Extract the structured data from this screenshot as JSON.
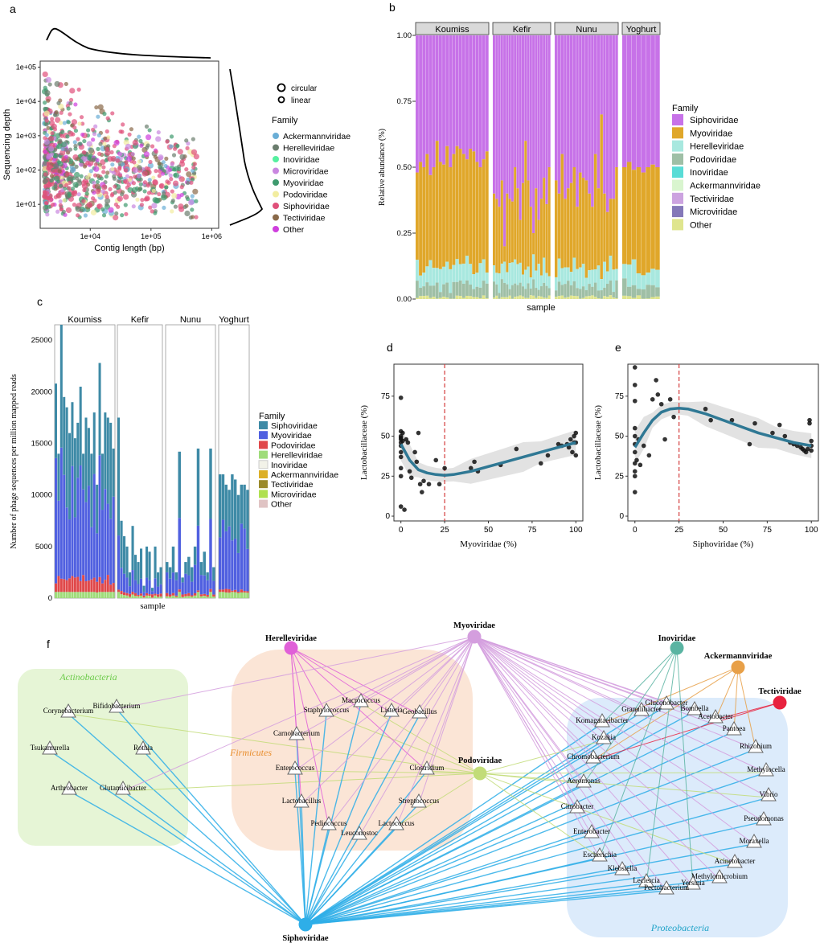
{
  "colors": {
    "Siphoviridae": "#c772e8",
    "Myoviridae": "#e0a72a",
    "Herelleviridae": "#a8e8df",
    "Podoviridae": "#9fbfa6",
    "Inoviridae": "#58dcd6",
    "Ackermannviridae": "#d9f5cf",
    "Tectiviridae": "#cca3e0",
    "Microviridae": "#8478b8",
    "Other": "#dfe58e"
  },
  "chart_data": [
    {
      "panel": "a",
      "type": "scatter",
      "xlabel": "Contig length (bp)",
      "ylabel": "Sequencing depth",
      "x_scale": "log10",
      "y_scale": "log10",
      "xlim": [
        1500,
        1300000
      ],
      "ylim": [
        2,
        150000
      ],
      "x_ticks": [
        "1e+04",
        "1e+05",
        "1e+06"
      ],
      "y_ticks": [
        "1e+01",
        "1e+02",
        "1e+03",
        "1e+04",
        "1e+05"
      ],
      "shape_legend": [
        "circular",
        "linear"
      ],
      "legend_title": "Family",
      "legend": [
        {
          "name": "Ackermannviridae",
          "color": "#6aaed6"
        },
        {
          "name": "Herelleviridae",
          "color": "#6b7d6e"
        },
        {
          "name": "Inoviridae",
          "color": "#56f0a0"
        },
        {
          "name": "Microviridae",
          "color": "#c987e0"
        },
        {
          "name": "Myoviridae",
          "color": "#3e9a6e"
        },
        {
          "name": "Podoviridae",
          "color": "#f2eda0"
        },
        {
          "name": "Siphoviridae",
          "color": "#e0507a"
        },
        {
          "name": "Tectiviridae",
          "color": "#8a6a4a"
        },
        {
          "name": "Other",
          "color": "#cf3fdd"
        }
      ]
    },
    {
      "panel": "b",
      "type": "bar",
      "stacked": true,
      "xlabel": "sample",
      "ylabel": "Relative abundance (%)",
      "ylim": [
        0,
        1
      ],
      "y_ticks": [
        "0.00",
        "0.25",
        "0.50",
        "0.75",
        "1.00"
      ],
      "facets": [
        "Koumiss",
        "Kefir",
        "Nunu",
        "Yoghurt"
      ],
      "legend_title": "Family",
      "legend": [
        "Siphoviridae",
        "Myoviridae",
        "Herelleviridae",
        "Podoviridae",
        "Inoviridae",
        "Ackermannviridae",
        "Tectiviridae",
        "Microviridae",
        "Other"
      ],
      "myoviridae_top": {
        "Koumiss": [
          0.48,
          0.52,
          0.5,
          0.55,
          0.47,
          0.5,
          0.6,
          0.52,
          0.51,
          0.58,
          0.5,
          0.55,
          0.58,
          0.57,
          0.55,
          0.53,
          0.57,
          0.56,
          0.52,
          0.5,
          0.53,
          0.56
        ],
        "Kefir": [
          0.4,
          0.38,
          0.35,
          0.45,
          0.2,
          0.4,
          0.38,
          0.37,
          0.5,
          0.42,
          0.3,
          0.44,
          0.6,
          0.45,
          0.35,
          0.25,
          0.42,
          0.3,
          0.38,
          0.46,
          0.36,
          0.5
        ],
        "Nunu": [
          0.45,
          0.4,
          0.55,
          0.38,
          0.42,
          0.44,
          0.5,
          0.35,
          0.48,
          0.46,
          0.45,
          0.4,
          0.35,
          0.55,
          0.42,
          0.7,
          0.4,
          0.33,
          0.38,
          0.38,
          0.5
        ],
        "Yoghurt": [
          0.5,
          0.52,
          0.49,
          0.5,
          0.48,
          0.5,
          0.51,
          0.5
        ]
      }
    },
    {
      "panel": "c",
      "type": "bar",
      "stacked": true,
      "xlabel": "sample",
      "ylabel": "Number of phage sequences per million mapped reads",
      "ylim": [
        0,
        26500
      ],
      "y_ticks": [
        "0",
        "5000",
        "10000",
        "15000",
        "20000",
        "25000"
      ],
      "facets": [
        "Koumiss",
        "Kefir",
        "Nunu",
        "Yoghurt"
      ],
      "legend_title": "Family",
      "legend": [
        {
          "name": "Siphoviridae",
          "color": "#3e8aa6"
        },
        {
          "name": "Myoviridae",
          "color": "#5060e0"
        },
        {
          "name": "Podoviridae",
          "color": "#e0484a"
        },
        {
          "name": "Herelleviridae",
          "color": "#9fdc7a"
        },
        {
          "name": "Inoviridae",
          "color": "#f2f2e8"
        },
        {
          "name": "Ackermannviridae",
          "color": "#dcb028"
        },
        {
          "name": "Tectiviridae",
          "color": "#9a8a2a"
        },
        {
          "name": "Microviridae",
          "color": "#b0e050"
        },
        {
          "name": "Other",
          "color": "#e0c4c4"
        }
      ],
      "totals": {
        "Koumiss": [
          20800,
          14000,
          26500,
          19500,
          18500,
          16000,
          19000,
          15500,
          17000,
          20500,
          14000,
          17500,
          16500,
          14000,
          18000,
          11000,
          22800,
          14000,
          18000,
          17500,
          17000,
          14500
        ],
        "Kefir": [
          17500,
          7500,
          6000,
          5000,
          2500,
          7000,
          4200,
          3500,
          4800,
          1200,
          5000,
          4500,
          1000,
          5000,
          2500,
          3000
        ],
        "Nunu": [
          3500,
          3000,
          5000,
          2500,
          14200,
          2000,
          3500,
          4000,
          3000,
          5000,
          14500,
          3500,
          4500,
          2500,
          14500,
          3000
        ],
        "Yoghurt": [
          12000,
          12000,
          11000,
          10500,
          12000,
          11500,
          10000,
          11000,
          11000,
          10500
        ]
      }
    },
    {
      "panel": "d",
      "type": "scatter",
      "xlabel": "Myoviridae (%)",
      "ylabel": "Lactobacillaceae (%)",
      "xlim": [
        -4,
        104
      ],
      "ylim": [
        -3,
        95
      ],
      "x_ticks": [
        0,
        25,
        50,
        75,
        100
      ],
      "y_ticks": [
        0,
        25,
        50,
        75
      ],
      "threshold_x": 25,
      "points": [
        [
          0,
          74
        ],
        [
          0,
          53
        ],
        [
          0,
          50
        ],
        [
          0,
          49
        ],
        [
          0,
          48
        ],
        [
          0,
          46
        ],
        [
          0,
          44
        ],
        [
          0,
          40
        ],
        [
          0,
          37
        ],
        [
          0,
          30
        ],
        [
          0,
          25
        ],
        [
          0,
          6
        ],
        [
          1,
          52
        ],
        [
          1,
          47
        ],
        [
          2,
          4
        ],
        [
          3,
          48
        ],
        [
          4,
          46
        ],
        [
          5,
          28
        ],
        [
          6,
          24
        ],
        [
          8,
          40
        ],
        [
          9,
          34
        ],
        [
          10,
          52
        ],
        [
          11,
          20
        ],
        [
          12,
          15
        ],
        [
          13,
          22
        ],
        [
          16,
          20
        ],
        [
          20,
          35
        ],
        [
          22,
          20
        ],
        [
          25,
          30
        ],
        [
          40,
          30
        ],
        [
          42,
          34
        ],
        [
          44,
          28
        ],
        [
          57,
          32
        ],
        [
          66,
          42
        ],
        [
          80,
          33
        ],
        [
          84,
          38
        ],
        [
          90,
          45
        ],
        [
          92,
          44
        ],
        [
          95,
          45
        ],
        [
          96,
          43
        ],
        [
          97,
          48
        ],
        [
          98,
          40
        ],
        [
          99,
          46
        ],
        [
          99,
          50
        ],
        [
          100,
          38
        ],
        [
          100,
          46
        ],
        [
          100,
          52
        ]
      ],
      "smooth": [
        [
          0,
          45
        ],
        [
          5,
          35
        ],
        [
          10,
          29
        ],
        [
          15,
          27
        ],
        [
          20,
          26
        ],
        [
          25,
          25.5
        ],
        [
          30,
          26
        ],
        [
          40,
          28
        ],
        [
          50,
          31
        ],
        [
          60,
          34
        ],
        [
          70,
          37
        ],
        [
          80,
          40
        ],
        [
          90,
          43
        ],
        [
          100,
          46
        ]
      ]
    },
    {
      "panel": "e",
      "type": "scatter",
      "xlabel": "Siphoviridae (%)",
      "ylabel": "Lactobacillaceae (%)",
      "xlim": [
        -4,
        104
      ],
      "ylim": [
        -3,
        95
      ],
      "x_ticks": [
        0,
        25,
        50,
        75,
        100
      ],
      "y_ticks": [
        0,
        25,
        50,
        75
      ],
      "threshold_x": 25,
      "points": [
        [
          0,
          93
        ],
        [
          0,
          82
        ],
        [
          0,
          72
        ],
        [
          0,
          55
        ],
        [
          0,
          50
        ],
        [
          0,
          45
        ],
        [
          0,
          40
        ],
        [
          0,
          33
        ],
        [
          0,
          28
        ],
        [
          0,
          25
        ],
        [
          0,
          15
        ],
        [
          1,
          35
        ],
        [
          2,
          48
        ],
        [
          3,
          32
        ],
        [
          5,
          44
        ],
        [
          8,
          38
        ],
        [
          10,
          73
        ],
        [
          12,
          85
        ],
        [
          13,
          76
        ],
        [
          15,
          70
        ],
        [
          17,
          48
        ],
        [
          20,
          73
        ],
        [
          22,
          62
        ],
        [
          40,
          67
        ],
        [
          43,
          60
        ],
        [
          55,
          60
        ],
        [
          65,
          45
        ],
        [
          68,
          58
        ],
        [
          78,
          52
        ],
        [
          82,
          57
        ],
        [
          85,
          50
        ],
        [
          88,
          46
        ],
        [
          90,
          45
        ],
        [
          92,
          44
        ],
        [
          94,
          43
        ],
        [
          95,
          42
        ],
        [
          96,
          41
        ],
        [
          97,
          40
        ],
        [
          98,
          42
        ],
        [
          99,
          58
        ],
        [
          99,
          60
        ],
        [
          100,
          44
        ],
        [
          100,
          41
        ],
        [
          100,
          47
        ]
      ],
      "smooth": [
        [
          0,
          43
        ],
        [
          5,
          52
        ],
        [
          10,
          60
        ],
        [
          15,
          65
        ],
        [
          20,
          67
        ],
        [
          25,
          67.5
        ],
        [
          30,
          67
        ],
        [
          40,
          64
        ],
        [
          50,
          60
        ],
        [
          60,
          56
        ],
        [
          70,
          52
        ],
        [
          80,
          49
        ],
        [
          90,
          46
        ],
        [
          100,
          44
        ]
      ]
    },
    {
      "panel": "f",
      "type": "network",
      "groups": [
        "Actinobacteria",
        "Firmicutes",
        "Proteobacteria"
      ],
      "phages": [
        {
          "id": "Herelleviridae",
          "color": "#e060d8"
        },
        {
          "id": "Myoviridae",
          "color": "#d49ede"
        },
        {
          "id": "Inoviridae",
          "color": "#5ab4a2"
        },
        {
          "id": "Ackermannviridae",
          "color": "#e8a048"
        },
        {
          "id": "Tectiviridae",
          "color": "#e8223e"
        },
        {
          "id": "Podoviridae",
          "color": "#c2dc78"
        },
        {
          "id": "Siphoviridae",
          "color": "#2eaee8"
        }
      ],
      "hosts": [
        "Corynebacterium",
        "Bifidobacterium",
        "Tsukamurella",
        "Rothia",
        "Arthrobacter",
        "Glutamicibacter",
        "Staphylococcus",
        "Macrococcus",
        "Listeria",
        "Carnobacterium",
        "Geobacillus",
        "Enterococcus",
        "Clostridium",
        "Lactobacillus",
        "Streptococcus",
        "Pediococcus",
        "Leuconostoc",
        "Lactococcus",
        "Gluconobacter",
        "Granulibacter",
        "Bombella",
        "Komagataeibacter",
        "Acetobacter",
        "Kozakia",
        "Pantoea",
        "Chromobacterium",
        "Rhizobium",
        "Methylocella",
        "Aeromonas",
        "Vibrio",
        "Citrobacter",
        "Pseudomonas",
        "Enterobacter",
        "Moraxella",
        "Escherichia",
        "Acinetobacter",
        "Klebsiella",
        "Methylomicrobium",
        "Leclercia",
        "Yersinia",
        "Pectobacterium"
      ]
    }
  ]
}
